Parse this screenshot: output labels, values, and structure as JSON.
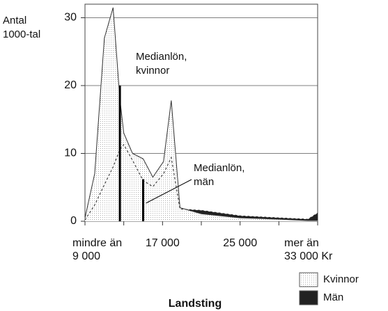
{
  "chart_data": {
    "type": "area",
    "title": "Landsting",
    "y_label": [
      "Antal",
      "1000-tal"
    ],
    "x": [
      9,
      10,
      11,
      11.9,
      12.6,
      13,
      13.9,
      15,
      16,
      17.1,
      17.9,
      18.8,
      21,
      25,
      29,
      32,
      33
    ],
    "series": [
      {
        "name": "Kvinnor",
        "color": "#e4e4e4",
        "values": [
          0.5,
          7,
          27,
          31.5,
          18,
          13,
          10,
          9.2,
          6.5,
          8.8,
          17.8,
          2,
          1.1,
          0.5,
          0.3,
          0.1,
          0.1
        ]
      },
      {
        "name": "Män",
        "color": "#222222",
        "values": [
          0.2,
          2.4,
          5.4,
          8,
          10.6,
          11.3,
          9,
          6,
          5.1,
          7,
          9.4,
          1.8,
          1.6,
          0.8,
          0.5,
          0.3,
          1.2
        ]
      }
    ],
    "medians": [
      {
        "text": [
          "Medianlön,",
          "kvinnor"
        ],
        "x": 12.6,
        "y": 20
      },
      {
        "text": [
          "Medianlön,",
          "män"
        ],
        "x": 15,
        "y": 6.2
      }
    ],
    "xlim": [
      9,
      33
    ],
    "xticks": [
      {
        "value": 9,
        "label": [
          "mindre än",
          "9 000"
        ]
      },
      {
        "value": 17,
        "label": [
          "17 000"
        ]
      },
      {
        "value": 25,
        "label": [
          "25 000"
        ]
      },
      {
        "value": 33,
        "label": [
          "mer än",
          "33 000 Kr"
        ]
      }
    ],
    "xticks_minor": [
      13,
      21,
      29
    ],
    "ylim": [
      0,
      32
    ],
    "yticks": [
      0,
      10,
      20,
      30
    ],
    "grid": true,
    "legend": "bottom-right"
  }
}
